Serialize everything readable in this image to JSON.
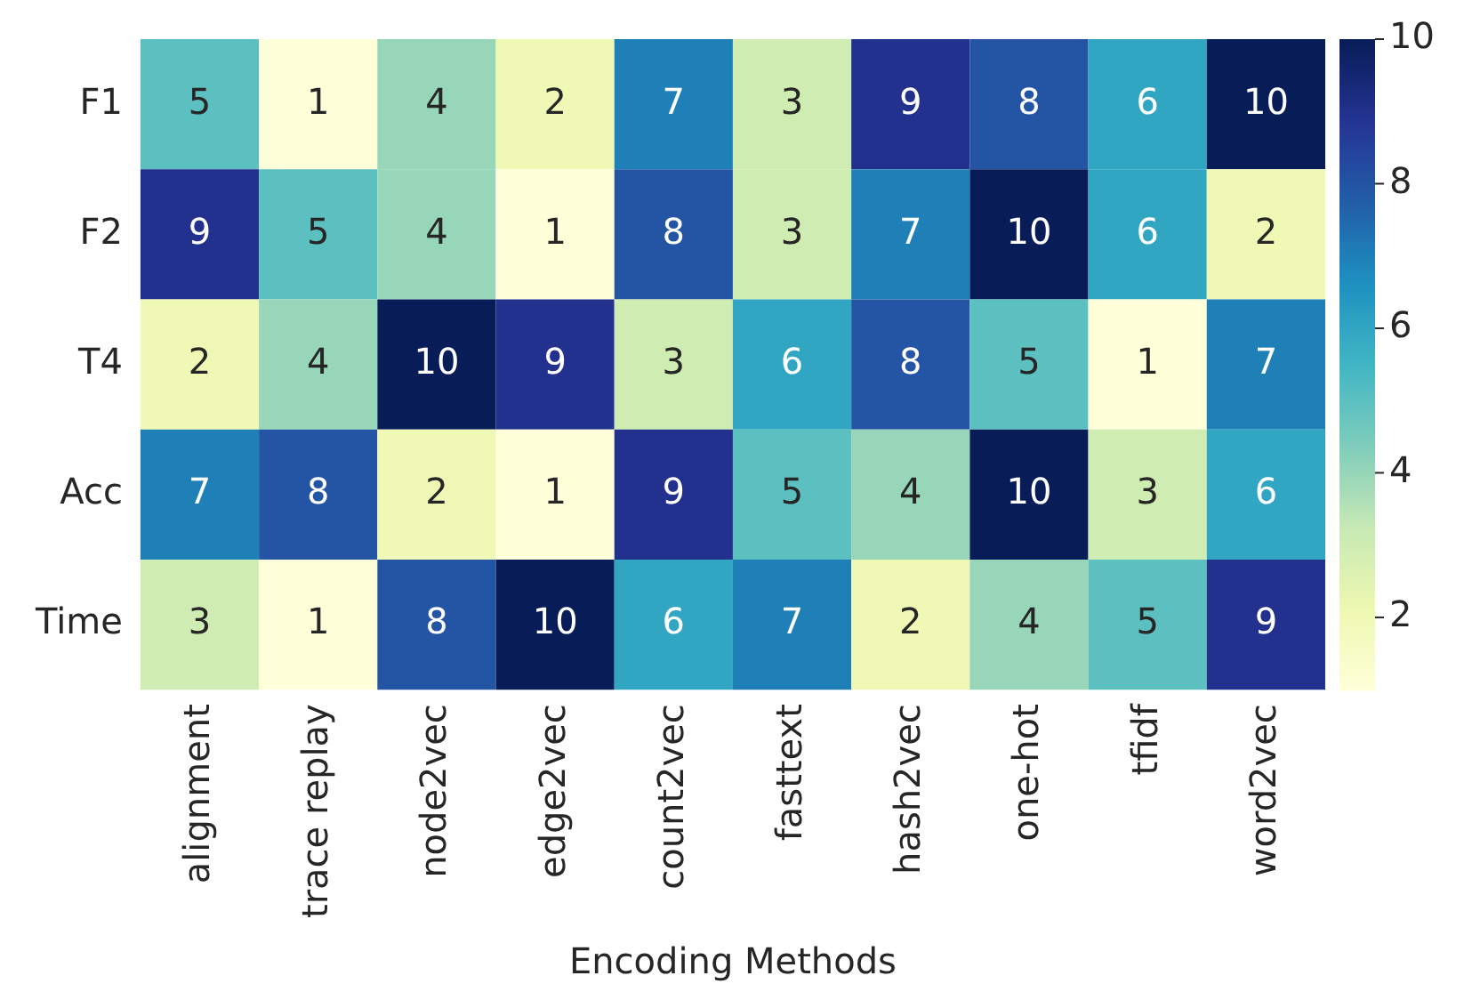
{
  "chart_data": {
    "type": "heatmap",
    "xlabel": "Encoding Methods",
    "categories": [
      "alignment",
      "trace replay",
      "node2vec",
      "edge2vec",
      "count2vec",
      "fasttext",
      "hash2vec",
      "one-hot",
      "tfidf",
      "word2vec"
    ],
    "y_categories": [
      "F1",
      "F2",
      "T4",
      "Acc",
      "Time"
    ],
    "cells": [
      [
        5,
        1,
        4,
        2,
        7,
        3,
        9,
        8,
        6,
        10
      ],
      [
        9,
        5,
        4,
        1,
        8,
        3,
        7,
        10,
        6,
        2
      ],
      [
        2,
        4,
        10,
        9,
        3,
        6,
        8,
        5,
        1,
        7
      ],
      [
        7,
        8,
        2,
        1,
        9,
        5,
        4,
        10,
        3,
        6
      ],
      [
        3,
        1,
        8,
        10,
        6,
        7,
        2,
        4,
        5,
        9
      ]
    ],
    "clim": [
      1,
      10
    ],
    "cticks": [
      2,
      4,
      6,
      8,
      10
    ],
    "data_labels": true
  }
}
